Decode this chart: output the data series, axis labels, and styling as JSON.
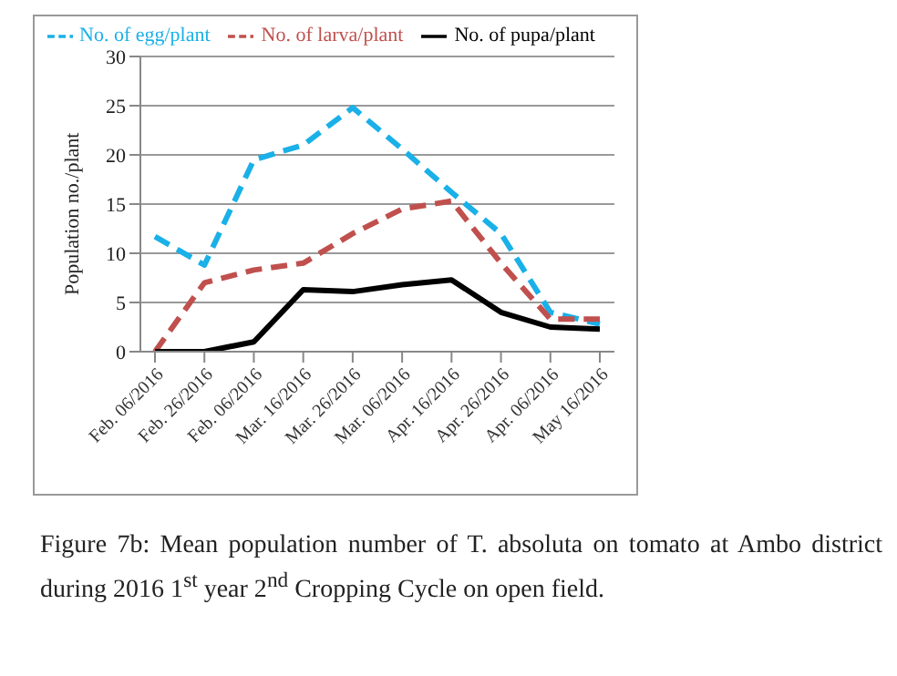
{
  "chart_data": {
    "type": "line",
    "ylabel": "Population no./plant",
    "categories": [
      "Feb. 06/2016",
      "Feb. 26/2016",
      "Feb. 06/2016",
      "Mar. 16/2016",
      "Mar. 26/2016",
      "Mar. 06/2016",
      "Apr. 16/2016",
      "Apr. 26/2016",
      "Apr. 06/2016",
      "May 16/2016"
    ],
    "series": [
      {
        "name": "No. of egg/plant",
        "color": "#1ab0e8",
        "line_style": "dashed",
        "values": [
          11.7,
          8.8,
          19.5,
          21,
          24.8,
          20.6,
          16.2,
          12,
          4,
          2.8
        ]
      },
      {
        "name": "No. of larva/plant",
        "color": "#c0504d",
        "line_style": "dashed",
        "values": [
          0,
          7,
          8.3,
          9,
          12,
          14.5,
          15.3,
          9,
          3.3,
          3.3
        ]
      },
      {
        "name": "No. of pupa/plant",
        "color": "#000000",
        "line_style": "solid",
        "values": [
          0,
          0,
          1,
          6.3,
          6.1,
          6.8,
          7.3,
          4,
          2.5,
          2.3
        ]
      }
    ],
    "ylim": [
      0,
      30
    ],
    "yticks": [
      0,
      5,
      10,
      15,
      20,
      25,
      30
    ],
    "grid": "y",
    "legend": "top",
    "marker": "none",
    "annotations": [
      "Figure 7b: Mean population number of T. absoluta on tomato at Ambo district during 2016 1$^{st}$ year 2$^{nd}$ Cropping Cycle on open field."
    ]
  }
}
